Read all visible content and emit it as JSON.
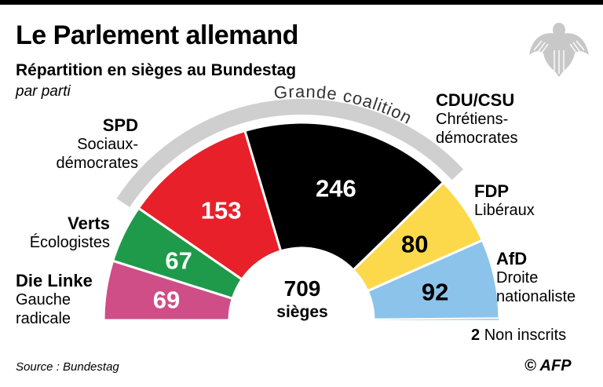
{
  "header": {
    "title": "Le Parlement allemand",
    "subtitle": "Répartition en sièges au Bundestag",
    "subtitle2": "par parti"
  },
  "coalition_label": "Grande coalition",
  "center": {
    "total": "709",
    "label": "sièges"
  },
  "non_inscrits": {
    "count": "2",
    "label": "Non inscrits"
  },
  "source": "Source : Bundestag",
  "credit": "© AFP",
  "logo": "bundestag-eagle-icon",
  "chart_data": {
    "type": "pie",
    "subtype": "hemicycle",
    "total": 709,
    "parties": [
      {
        "name": "Die Linke",
        "desc": "Gauche radicale",
        "seats": 69,
        "color": "#cf4e87"
      },
      {
        "name": "Verts",
        "desc": "Écologistes",
        "seats": 67,
        "color": "#1e9a4a"
      },
      {
        "name": "SPD",
        "desc": "Sociaux-démocrates",
        "seats": 153,
        "color": "#e8202a"
      },
      {
        "name": "CDU/CSU",
        "desc": "Chrétiens-démocrates",
        "seats": 246,
        "color": "#000000"
      },
      {
        "name": "FDP",
        "desc": "Libéraux",
        "seats": 80,
        "color": "#fcd94a"
      },
      {
        "name": "AfD",
        "desc": "Droite nationaliste",
        "seats": 92,
        "color": "#8cc3ea"
      },
      {
        "name": "Non inscrits",
        "desc": "",
        "seats": 2,
        "color": "#8cc3ea"
      }
    ]
  }
}
